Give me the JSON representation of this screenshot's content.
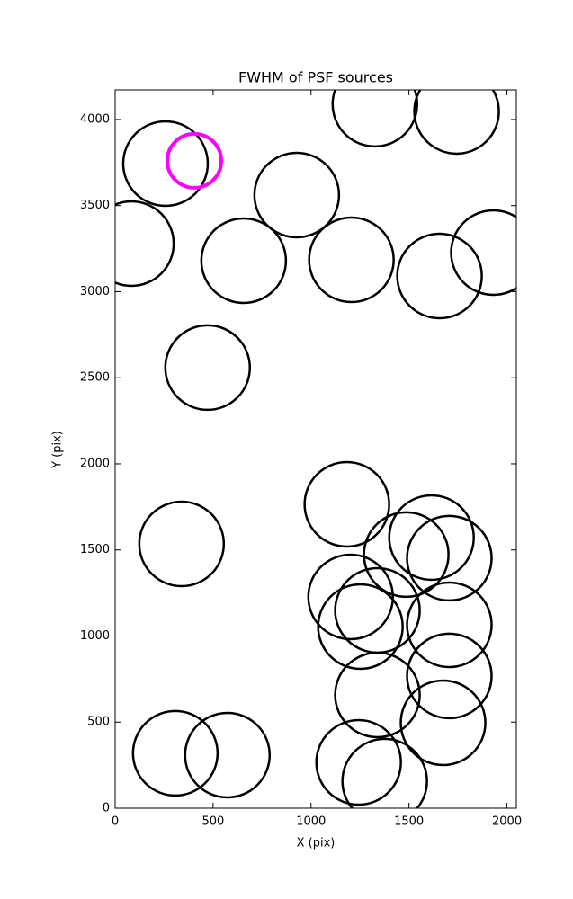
{
  "chart_data": {
    "type": "scatter",
    "title": "FWHM of PSF sources",
    "x_label": "X (pix)",
    "y_label": "Y (pix)",
    "xlim": [
      0,
      2048
    ],
    "ylim": [
      0,
      4172
    ],
    "xticks": [
      0,
      500,
      1000,
      1500,
      2000
    ],
    "yticks": [
      0,
      500,
      1000,
      1500,
      2000,
      2500,
      3000,
      3500,
      4000
    ],
    "series": [
      {
        "color": "#000000",
        "x": [
          1326,
          1743,
          257,
          927,
          83,
          656,
          1206,
          1656,
          1931,
          472,
          1183,
          339,
          1615,
          1486,
          1706,
          1202,
          1339,
          1706,
          1252,
          1339,
          1706,
          1674,
          307,
          573,
          1243,
          1376
        ],
        "values": [
          4089,
          4047,
          3744,
          3561,
          3279,
          3180,
          3185,
          3091,
          3227,
          2559,
          1765,
          1535,
          1572,
          1473,
          1452,
          1227,
          1149,
          1065,
          1055,
          658,
          768,
          496,
          319,
          308,
          266,
          157
        ]
      },
      {
        "color": "#ff00ff",
        "x": [
          404
        ],
        "values": [
          3760
        ]
      }
    ]
  }
}
